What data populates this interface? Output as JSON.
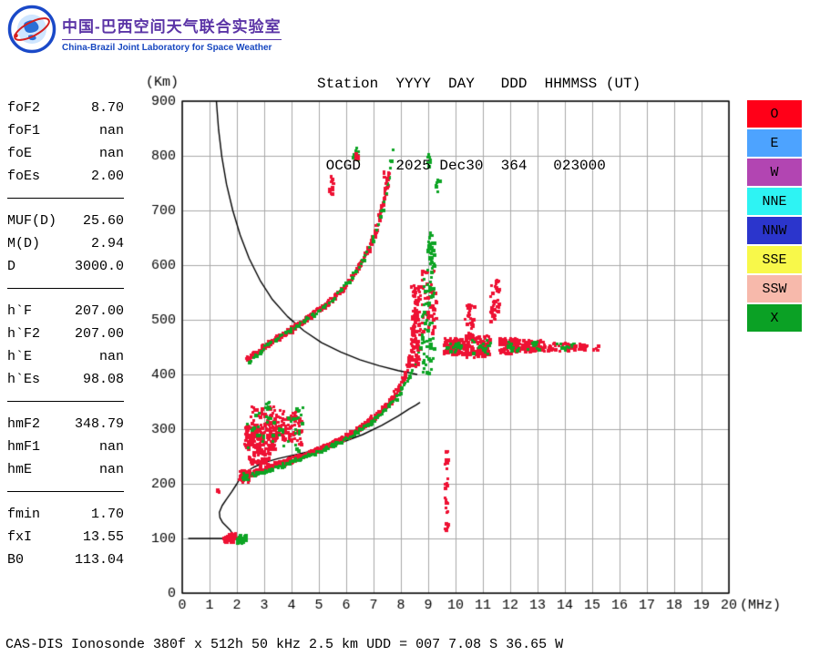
{
  "header": {
    "lab_title_zh": "中国-巴西空间天气联合实验室",
    "lab_title_en": "China-Brazil Joint Laboratory for Space Weather",
    "station_header_line": "Station  YYYY  DAY   DDD  HHMMSS (UT)",
    "station_value_line": " OCGD    2025 Dec30  364   023000"
  },
  "params": {
    "groups": [
      {
        "rows": [
          {
            "label": "foF2",
            "value": "8.70"
          },
          {
            "label": "foF1",
            "value": "nan"
          },
          {
            "label": "foE",
            "value": "nan"
          },
          {
            "label": "foEs",
            "value": "2.00"
          }
        ]
      },
      {
        "rows": [
          {
            "label": "MUF(D)",
            "value": "25.60"
          },
          {
            "label": "M(D)",
            "value": "2.94"
          },
          {
            "label": "D",
            "value": "3000.0"
          }
        ]
      },
      {
        "rows": [
          {
            "label": "h`F",
            "value": "207.00"
          },
          {
            "label": "h`F2",
            "value": "207.00"
          },
          {
            "label": "h`E",
            "value": "nan"
          },
          {
            "label": "h`Es",
            "value": "98.08"
          }
        ]
      },
      {
        "rows": [
          {
            "label": "hmF2",
            "value": "348.79"
          },
          {
            "label": "hmF1",
            "value": "nan"
          },
          {
            "label": "hmE",
            "value": "nan"
          }
        ]
      },
      {
        "rows": [
          {
            "label": "fmin",
            "value": "1.70"
          },
          {
            "label": "fxI",
            "value": "13.55"
          },
          {
            "label": "B0",
            "value": "113.04"
          }
        ]
      }
    ]
  },
  "legend": {
    "items": [
      {
        "label": "O",
        "color": "#ff0018"
      },
      {
        "label": "E",
        "color": "#4da3ff"
      },
      {
        "label": "W",
        "color": "#b245b2"
      },
      {
        "label": "NNE",
        "color": "#2ef3f3"
      },
      {
        "label": "NNW",
        "color": "#2b35cc"
      },
      {
        "label": "SSE",
        "color": "#f8f84a"
      },
      {
        "label": "SSW",
        "color": "#f7b9ab"
      },
      {
        "label": "X",
        "color": "#0ba125"
      }
    ]
  },
  "footer": {
    "text": "CAS-DIS Ionosonde 380f x 512h 50 kHz 2.5 km UDD = 007 7.08 S 36.65 W"
  },
  "chart_data": {
    "type": "scatter",
    "x_axis": {
      "label": "(MHz)",
      "min": 0,
      "max": 20,
      "ticks": [
        0,
        1,
        2,
        3,
        4,
        5,
        6,
        7,
        8,
        9,
        10,
        11,
        12,
        13,
        14,
        15,
        16,
        17,
        18,
        19,
        20
      ]
    },
    "y_axis": {
      "label": "(Km)",
      "min": 0,
      "max": 900,
      "ticks": [
        0,
        100,
        200,
        300,
        400,
        500,
        600,
        700,
        800,
        900
      ]
    },
    "grid": true,
    "grid_color": "#a8a8a8",
    "point_colors": {
      "O": "#ee1133",
      "X": "#0da424"
    },
    "echo_traces": [
      {
        "name": "F-trace-O",
        "mode": "O",
        "spread": 9,
        "step": 0.03,
        "density": 2,
        "points": [
          [
            2.08,
            212
          ],
          [
            2.4,
            218
          ],
          [
            2.8,
            224
          ],
          [
            3.2,
            231
          ],
          [
            3.6,
            238
          ],
          [
            4.0,
            245
          ],
          [
            4.4,
            252
          ],
          [
            4.8,
            260
          ],
          [
            5.2,
            268
          ],
          [
            5.6,
            277
          ],
          [
            6.0,
            288
          ],
          [
            6.4,
            300
          ],
          [
            6.8,
            314
          ],
          [
            7.2,
            331
          ],
          [
            7.6,
            352
          ],
          [
            7.9,
            374
          ],
          [
            8.15,
            400
          ],
          [
            8.3,
            428
          ],
          [
            8.42,
            462
          ],
          [
            8.5,
            500
          ],
          [
            8.55,
            535
          ]
        ]
      },
      {
        "name": "F-trace-X",
        "mode": "X",
        "spread": 5,
        "step": 0.05,
        "density": 1,
        "points": [
          [
            2.15,
            209
          ],
          [
            2.7,
            219
          ],
          [
            3.3,
            228
          ],
          [
            3.9,
            239
          ],
          [
            4.5,
            250
          ],
          [
            5.1,
            262
          ],
          [
            5.7,
            276
          ],
          [
            6.3,
            293
          ],
          [
            6.9,
            313
          ],
          [
            7.4,
            335
          ],
          [
            7.9,
            363
          ],
          [
            8.3,
            398
          ],
          [
            8.6,
            432
          ],
          [
            8.8,
            468
          ],
          [
            8.95,
            510
          ],
          [
            9.05,
            560
          ],
          [
            9.12,
            610
          ],
          [
            9.18,
            655
          ]
        ]
      },
      {
        "name": "2F-trace-O",
        "mode": "O",
        "spread": 9,
        "step": 0.04,
        "density": 2,
        "points": [
          [
            2.3,
            426
          ],
          [
            2.7,
            442
          ],
          [
            3.1,
            456
          ],
          [
            3.5,
            469
          ],
          [
            3.9,
            481
          ],
          [
            4.3,
            494
          ],
          [
            4.7,
            508
          ],
          [
            5.1,
            523
          ],
          [
            5.5,
            540
          ],
          [
            5.9,
            560
          ],
          [
            6.2,
            579
          ],
          [
            6.5,
            602
          ],
          [
            6.8,
            630
          ],
          [
            7.05,
            662
          ],
          [
            7.25,
            697
          ],
          [
            7.42,
            735
          ],
          [
            7.55,
            770
          ]
        ]
      },
      {
        "name": "2F-trace-X",
        "mode": "X",
        "spread": 5,
        "step": 0.08,
        "density": 1,
        "points": [
          [
            2.4,
            424
          ],
          [
            3.2,
            458
          ],
          [
            4.0,
            484
          ],
          [
            4.8,
            510
          ],
          [
            5.5,
            538
          ],
          [
            6.1,
            572
          ],
          [
            6.6,
            610
          ],
          [
            7.0,
            652
          ],
          [
            7.3,
            700
          ],
          [
            7.5,
            748
          ],
          [
            7.62,
            790
          ],
          [
            7.68,
            810
          ]
        ]
      }
    ],
    "echo_clusters": [
      {
        "mode": "O",
        "x": [
          2.28,
          3.4
        ],
        "y": [
          262,
          312
        ],
        "n": 170
      },
      {
        "mode": "O",
        "x": [
          3.35,
          4.35
        ],
        "y": [
          272,
          333
        ],
        "n": 95
      },
      {
        "mode": "O",
        "x": [
          2.5,
          3.7
        ],
        "y": [
          310,
          342
        ],
        "n": 40
      },
      {
        "mode": "X",
        "x": [
          2.35,
          4.4
        ],
        "y": [
          258,
          336
        ],
        "n": 40
      },
      {
        "mode": "X",
        "x": [
          3.0,
          3.3
        ],
        "y": [
          336,
          352
        ],
        "n": 7
      },
      {
        "mode": "X",
        "x": [
          4.1,
          4.45
        ],
        "y": [
          320,
          342
        ],
        "n": 8
      },
      {
        "mode": "O",
        "x": [
          2.4,
          3.2
        ],
        "y": [
          232,
          262
        ],
        "n": 45
      },
      {
        "mode": "O",
        "x": [
          2.05,
          2.45
        ],
        "y": [
          203,
          226
        ],
        "n": 40
      },
      {
        "mode": "X",
        "x": [
          2.2,
          2.5
        ],
        "y": [
          208,
          222
        ],
        "n": 12
      },
      {
        "mode": "O",
        "x": [
          8.35,
          8.72
        ],
        "y": [
          415,
          565
        ],
        "n": 90
      },
      {
        "mode": "O",
        "x": [
          8.75,
          9.3
        ],
        "y": [
          475,
          595
        ],
        "n": 55
      },
      {
        "mode": "X",
        "x": [
          8.7,
          9.2
        ],
        "y": [
          400,
          600
        ],
        "n": 55
      },
      {
        "mode": "X",
        "x": [
          8.95,
          9.22
        ],
        "y": [
          595,
          665
        ],
        "n": 30
      },
      {
        "mode": "O",
        "x": [
          5.35,
          5.55
        ],
        "y": [
          728,
          768
        ],
        "n": 14
      },
      {
        "mode": "X",
        "x": [
          6.22,
          6.45
        ],
        "y": [
          788,
          815
        ],
        "n": 12
      },
      {
        "mode": "O",
        "x": [
          6.3,
          6.42
        ],
        "y": [
          795,
          812
        ],
        "n": 5
      },
      {
        "mode": "O",
        "x": [
          7.35,
          7.6
        ],
        "y": [
          738,
          772
        ],
        "n": 12
      },
      {
        "mode": "X",
        "x": [
          8.92,
          9.08
        ],
        "y": [
          778,
          803
        ],
        "n": 8
      },
      {
        "mode": "X",
        "x": [
          9.22,
          9.4
        ],
        "y": [
          735,
          757
        ],
        "n": 6
      },
      {
        "mode": "O",
        "x": [
          9.55,
          10.3
        ],
        "y": [
          436,
          468
        ],
        "n": 90
      },
      {
        "mode": "X",
        "x": [
          9.6,
          10.25
        ],
        "y": [
          440,
          462
        ],
        "n": 16
      },
      {
        "mode": "O",
        "x": [
          10.35,
          11.25
        ],
        "y": [
          432,
          472
        ],
        "n": 120
      },
      {
        "mode": "O",
        "x": [
          10.32,
          10.72
        ],
        "y": [
          470,
          532
        ],
        "n": 30
      },
      {
        "mode": "O",
        "x": [
          11.25,
          11.58
        ],
        "y": [
          498,
          575
        ],
        "n": 38
      },
      {
        "mode": "X",
        "x": [
          10.6,
          11.35
        ],
        "y": [
          438,
          464
        ],
        "n": 18
      },
      {
        "mode": "O",
        "x": [
          11.6,
          12.35
        ],
        "y": [
          438,
          468
        ],
        "n": 85
      },
      {
        "mode": "X",
        "x": [
          11.85,
          12.3
        ],
        "y": [
          442,
          462
        ],
        "n": 12
      },
      {
        "mode": "O",
        "x": [
          12.42,
          13.28
        ],
        "y": [
          442,
          464
        ],
        "n": 60
      },
      {
        "mode": "X",
        "x": [
          12.6,
          13.1
        ],
        "y": [
          445,
          460
        ],
        "n": 8
      },
      {
        "mode": "O",
        "x": [
          13.35,
          14.2
        ],
        "y": [
          443,
          458
        ],
        "n": 28
      },
      {
        "mode": "X",
        "x": [
          13.62,
          14.35
        ],
        "y": [
          444,
          457
        ],
        "n": 10
      },
      {
        "mode": "O",
        "x": [
          14.25,
          14.8
        ],
        "y": [
          443,
          456
        ],
        "n": 16
      },
      {
        "mode": "O",
        "x": [
          14.95,
          15.22
        ],
        "y": [
          444,
          453
        ],
        "n": 6
      },
      {
        "mode": "O",
        "x": [
          1.5,
          2.05
        ],
        "y": [
          93,
          110
        ],
        "n": 55
      },
      {
        "mode": "X",
        "x": [
          1.98,
          2.35
        ],
        "y": [
          92,
          108
        ],
        "n": 32
      },
      {
        "mode": "O",
        "x": [
          1.22,
          1.34
        ],
        "y": [
          182,
          194
        ],
        "n": 5
      },
      {
        "mode": "O",
        "x": [
          9.6,
          9.72
        ],
        "y": [
          113,
          132
        ],
        "n": 7
      },
      {
        "mode": "O",
        "x": [
          9.6,
          9.72
        ],
        "y": [
          146,
          176
        ],
        "n": 9
      },
      {
        "mode": "O",
        "x": [
          9.6,
          9.72
        ],
        "y": [
          193,
          216
        ],
        "n": 7
      },
      {
        "mode": "O",
        "x": [
          9.6,
          9.72
        ],
        "y": [
          226,
          262
        ],
        "n": 10
      }
    ],
    "black_curves": [
      {
        "name": "transmission-curve",
        "points": [
          [
            1.25,
            900
          ],
          [
            1.33,
            848
          ],
          [
            1.45,
            798
          ],
          [
            1.62,
            748
          ],
          [
            1.85,
            700
          ],
          [
            2.12,
            655
          ],
          [
            2.45,
            612
          ],
          [
            2.85,
            572
          ],
          [
            3.3,
            537
          ],
          [
            3.85,
            506
          ],
          [
            4.45,
            480
          ],
          [
            5.1,
            458
          ],
          [
            5.8,
            441
          ],
          [
            6.5,
            427
          ],
          [
            7.2,
            416
          ],
          [
            7.9,
            407
          ],
          [
            8.6,
            400
          ]
        ]
      },
      {
        "name": "true-height-profile",
        "points": [
          [
            0.22,
            100
          ],
          [
            1.86,
            100
          ],
          [
            1.84,
            108
          ],
          [
            1.76,
            115
          ],
          [
            1.62,
            122
          ],
          [
            1.48,
            129
          ],
          [
            1.38,
            138
          ],
          [
            1.36,
            148
          ],
          [
            1.46,
            160
          ],
          [
            1.62,
            172
          ],
          [
            1.82,
            186
          ],
          [
            2.0,
            200
          ],
          [
            2.14,
            212
          ],
          [
            2.32,
            221
          ],
          [
            2.6,
            230
          ],
          [
            3.0,
            239
          ],
          [
            3.5,
            246
          ],
          [
            4.2,
            254
          ],
          [
            5.0,
            263
          ],
          [
            5.8,
            275
          ],
          [
            6.6,
            290
          ],
          [
            7.3,
            307
          ],
          [
            7.9,
            324
          ],
          [
            8.3,
            337
          ],
          [
            8.55,
            344
          ],
          [
            8.7,
            349
          ]
        ]
      }
    ]
  }
}
